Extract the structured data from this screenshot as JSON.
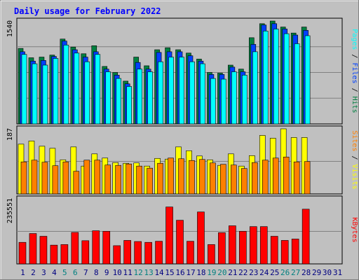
{
  "chart_data": {
    "type": "bar",
    "title": "Daily usage for February 2022",
    "days": [
      1,
      2,
      3,
      4,
      5,
      6,
      7,
      8,
      9,
      10,
      11,
      12,
      13,
      14,
      15,
      16,
      17,
      18,
      19,
      20,
      21,
      22,
      23,
      24,
      25,
      26,
      27,
      28,
      29,
      30,
      31
    ],
    "weekend_days": [
      5,
      6,
      12,
      13,
      19,
      20,
      26,
      27
    ],
    "panels": [
      {
        "id": "hits-files-pages",
        "ymax": 1540,
        "ymax_label": "1540",
        "right_labels": [
          "Pages",
          "Files",
          "Hits"
        ],
        "series": [
          {
            "name": "Hits",
            "values": [
              1130,
              990,
              1000,
              1030,
              1270,
              1150,
              1050,
              1170,
              860,
              770,
              640,
              1000,
              870,
              1110,
              1140,
              1110,
              1060,
              970,
              770,
              760,
              880,
              820,
              1290,
              1500,
              1560,
              1450,
              1360,
              1450,
              0,
              0,
              0
            ]
          },
          {
            "name": "Files",
            "values": [
              1080,
              940,
              950,
              1010,
              1240,
              1110,
              1000,
              1080,
              820,
              730,
              600,
              920,
              820,
              1070,
              1080,
              1080,
              1020,
              940,
              740,
              740,
              850,
              780,
              1190,
              1480,
              1500,
              1420,
              1330,
              1400,
              0,
              0,
              0
            ]
          },
          {
            "name": "Pages",
            "values": [
              1040,
              900,
              880,
              980,
              1180,
              1060,
              930,
              1040,
              780,
              680,
              560,
              820,
              780,
              930,
              1000,
              1000,
              930,
              900,
              680,
              670,
              780,
              730,
              1080,
              1390,
              1420,
              1350,
              1200,
              1320,
              0,
              0,
              0
            ]
          }
        ]
      },
      {
        "id": "visits-sites",
        "ymax": 187,
        "ymax_label": "187",
        "right_labels": [
          "Sites",
          "Visits"
        ],
        "series": [
          {
            "name": "Visits",
            "values": [
              143,
              152,
              137,
              131,
              98,
              135,
              80,
              115,
              103,
              90,
              88,
              89,
              80,
              102,
              100,
              135,
              124,
              109,
              98,
              82,
              115,
              80,
              110,
              168,
              160,
              188,
              162,
              162,
              0,
              0,
              0
            ]
          },
          {
            "name": "Sites",
            "values": [
              92,
              97,
              91,
              81,
              92,
              65,
              97,
              97,
              83,
              82,
              86,
              80,
              74,
              88,
              103,
              101,
              96,
              99,
              89,
              85,
              83,
              73,
              90,
              97,
              103,
              106,
              92,
              93,
              0,
              0,
              0
            ]
          }
        ]
      },
      {
        "id": "kbytes",
        "ymax": 235551,
        "ymax_label": "235551",
        "right_labels": [
          "KBytes"
        ],
        "series": [
          {
            "name": "KBytes",
            "values": [
              78000,
              110000,
              100000,
              68000,
              70000,
              114000,
              84000,
              120000,
              118000,
              66000,
              85000,
              81000,
              78000,
              82000,
              206000,
              158000,
              82000,
              188000,
              70000,
              113000,
              138000,
              118000,
              135000,
              135000,
              100000,
              85000,
              90000,
              198000,
              0,
              0,
              0
            ]
          }
        ]
      }
    ]
  },
  "colors": {
    "background": "#c0c0c0",
    "plot_bg": "#c0c0c0",
    "frame": "#000000",
    "gridline": "#808080",
    "title": "#0000ff",
    "hits": "#008040",
    "files": "#0040ff",
    "pages": "#00ffff",
    "visits": "#ffff00",
    "sites": "#ff8000",
    "kbytes": "#ff0000",
    "weekend_label": "#008080",
    "weekday_label": "#000080"
  }
}
